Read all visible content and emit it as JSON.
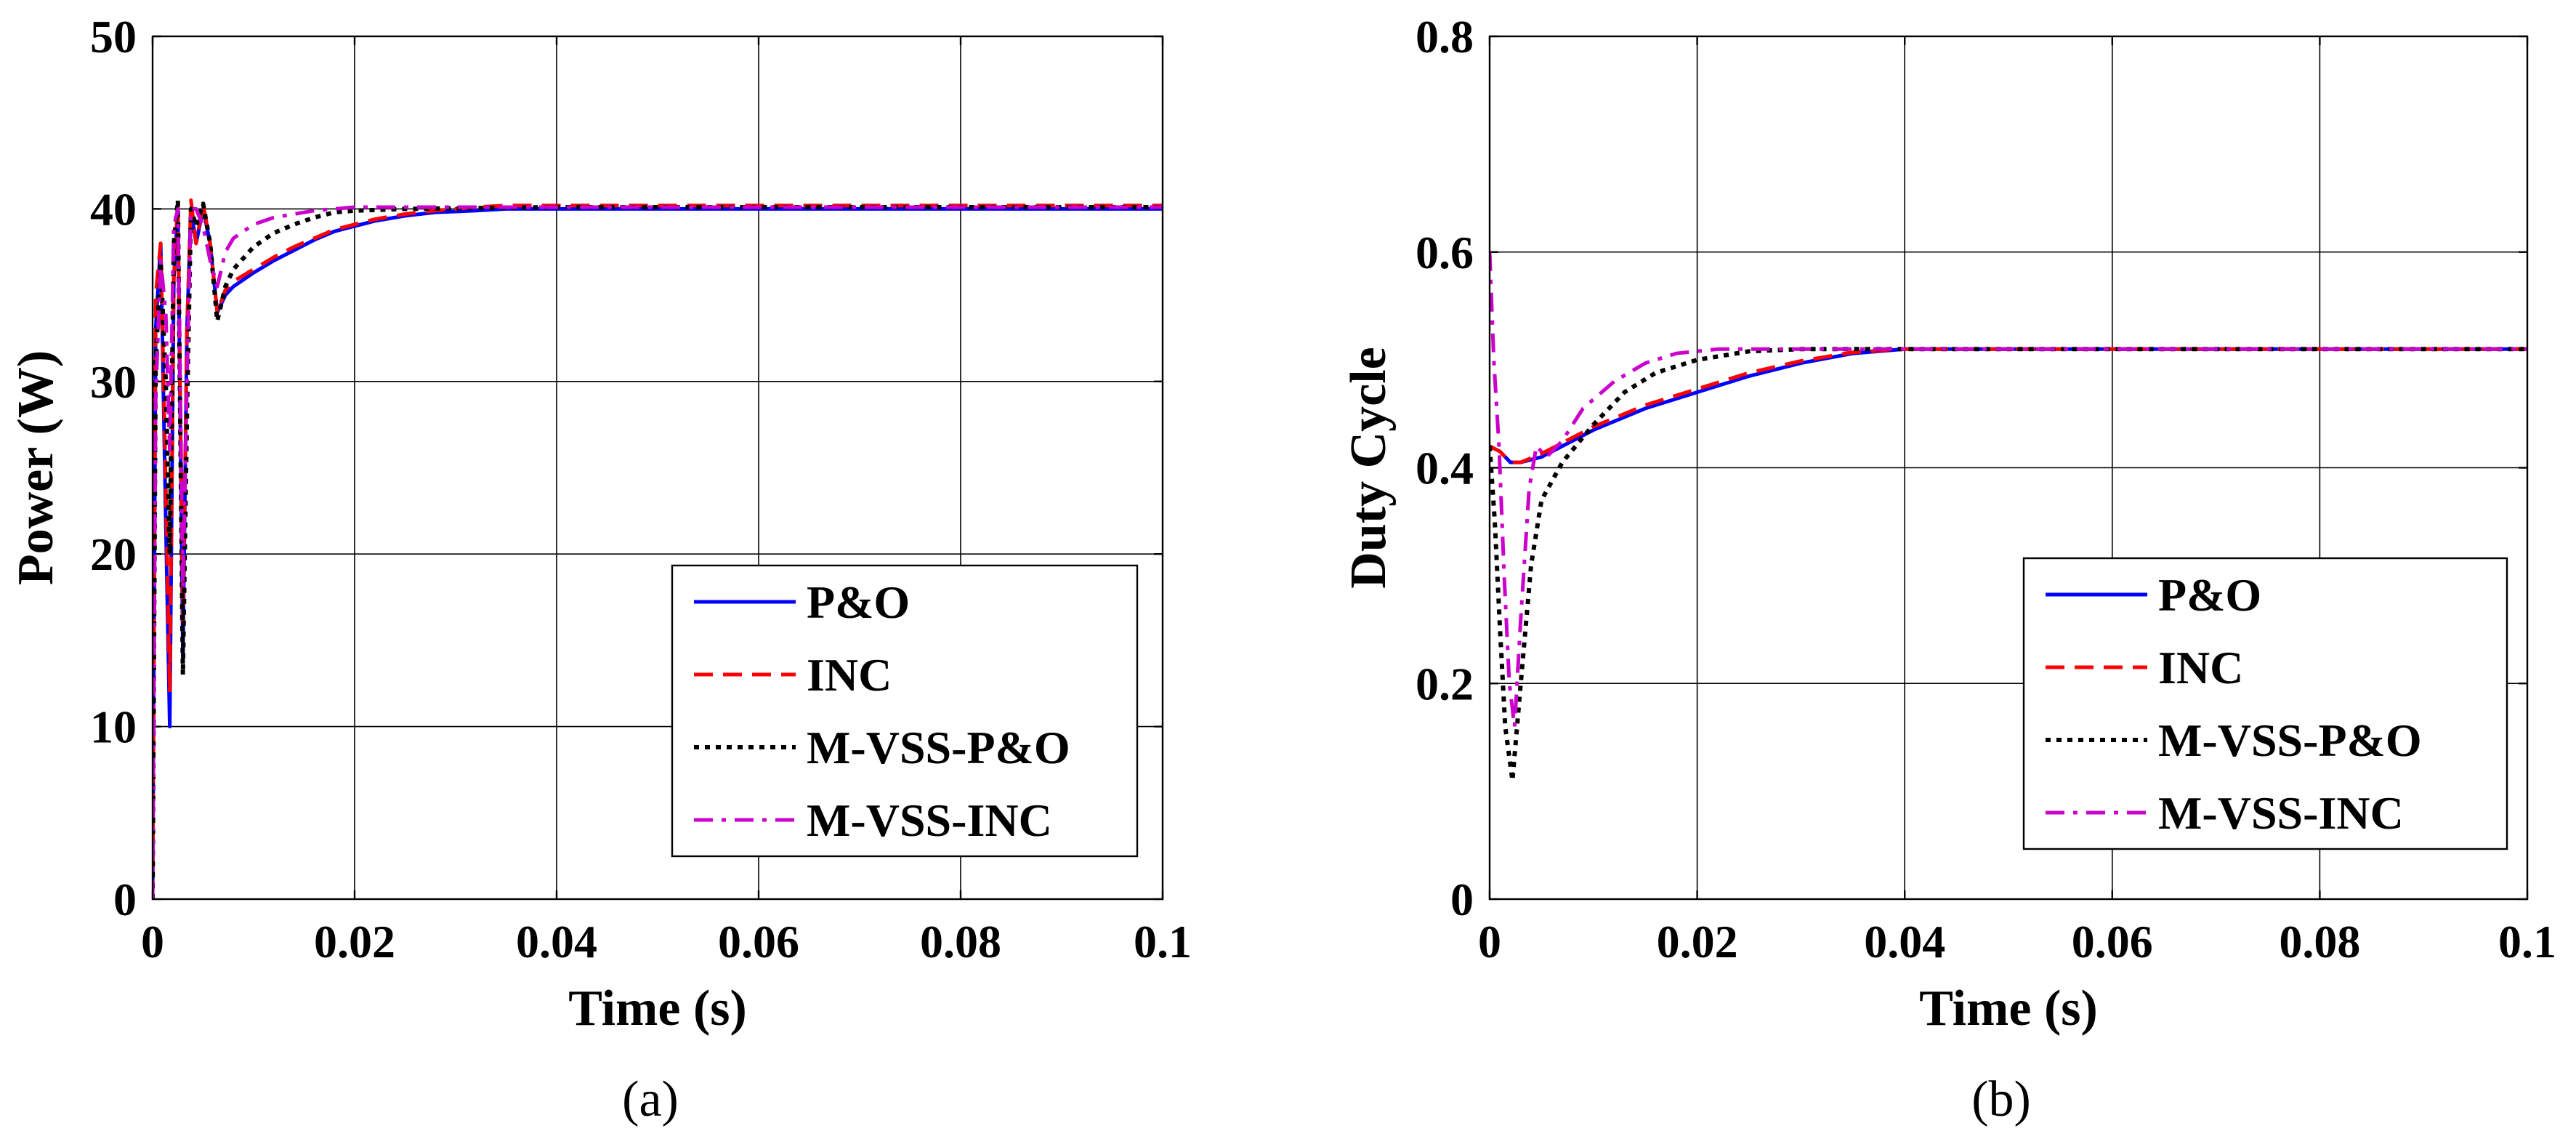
{
  "chart_data": [
    {
      "id": "a",
      "type": "line",
      "caption": "(a)",
      "xlabel": "Time (s)",
      "ylabel": "Power (W)",
      "xlim": [
        0,
        0.1
      ],
      "ylim": [
        0,
        50
      ],
      "xticks": [
        0,
        0.02,
        0.04,
        0.06,
        0.08,
        0.1
      ],
      "xtick_labels": [
        "0",
        "0.02",
        "0.04",
        "0.06",
        "0.08",
        "0.1"
      ],
      "yticks": [
        0,
        10,
        20,
        30,
        40,
        50
      ],
      "ytick_labels": [
        "0",
        "10",
        "20",
        "30",
        "40",
        "50"
      ],
      "grid": true,
      "legend_position": "bottom-right",
      "series": [
        {
          "name": "P&O",
          "color": "#0000ff",
          "style": "solid",
          "points": [
            [
              0,
              0
            ],
            [
              0.0003,
              33
            ],
            [
              0.0008,
              38
            ],
            [
              0.0013,
              22
            ],
            [
              0.0017,
              10
            ],
            [
              0.0021,
              36
            ],
            [
              0.0025,
              40
            ],
            [
              0.003,
              14
            ],
            [
              0.0034,
              33
            ],
            [
              0.0038,
              40
            ],
            [
              0.0043,
              38
            ],
            [
              0.005,
              40
            ],
            [
              0.0057,
              38
            ],
            [
              0.0064,
              34
            ],
            [
              0.0072,
              35
            ],
            [
              0.008,
              35.5
            ],
            [
              0.01,
              36.3
            ],
            [
              0.012,
              37
            ],
            [
              0.014,
              37.6
            ],
            [
              0.016,
              38.2
            ],
            [
              0.018,
              38.7
            ],
            [
              0.02,
              39
            ],
            [
              0.022,
              39.3
            ],
            [
              0.025,
              39.6
            ],
            [
              0.028,
              39.8
            ],
            [
              0.032,
              39.9
            ],
            [
              0.035,
              40
            ],
            [
              0.04,
              40
            ],
            [
              0.06,
              40
            ],
            [
              0.08,
              40
            ],
            [
              0.1,
              40
            ]
          ]
        },
        {
          "name": "INC",
          "color": "#ff0000",
          "style": "dashed",
          "points": [
            [
              0,
              0
            ],
            [
              0.0003,
              35
            ],
            [
              0.0008,
              38
            ],
            [
              0.0013,
              24
            ],
            [
              0.0017,
              12
            ],
            [
              0.0021,
              36
            ],
            [
              0.0025,
              40.5
            ],
            [
              0.003,
              16
            ],
            [
              0.0034,
              33
            ],
            [
              0.0038,
              40.5
            ],
            [
              0.0043,
              38
            ],
            [
              0.005,
              40.3
            ],
            [
              0.0057,
              38
            ],
            [
              0.0064,
              34
            ],
            [
              0.0072,
              35.3
            ],
            [
              0.008,
              35.8
            ],
            [
              0.01,
              36.5
            ],
            [
              0.012,
              37.2
            ],
            [
              0.014,
              37.8
            ],
            [
              0.016,
              38.3
            ],
            [
              0.018,
              38.8
            ],
            [
              0.02,
              39.1
            ],
            [
              0.022,
              39.4
            ],
            [
              0.025,
              39.7
            ],
            [
              0.028,
              39.9
            ],
            [
              0.032,
              40.1
            ],
            [
              0.035,
              40.2
            ],
            [
              0.04,
              40.2
            ],
            [
              0.06,
              40.2
            ],
            [
              0.08,
              40.2
            ],
            [
              0.1,
              40.2
            ]
          ]
        },
        {
          "name": "M-VSS-P&O",
          "color": "#000000",
          "style": "dotted",
          "points": [
            [
              0,
              0
            ],
            [
              0.0003,
              31
            ],
            [
              0.0008,
              37
            ],
            [
              0.0013,
              30
            ],
            [
              0.0017,
              20
            ],
            [
              0.0021,
              38
            ],
            [
              0.0025,
              40.5
            ],
            [
              0.003,
              13
            ],
            [
              0.0034,
              28
            ],
            [
              0.0038,
              40
            ],
            [
              0.0043,
              39
            ],
            [
              0.005,
              40.3
            ],
            [
              0.0057,
              38
            ],
            [
              0.0064,
              33.5
            ],
            [
              0.0072,
              35.5
            ],
            [
              0.008,
              36.5
            ],
            [
              0.01,
              37.8
            ],
            [
              0.012,
              38.6
            ],
            [
              0.014,
              39.1
            ],
            [
              0.016,
              39.5
            ],
            [
              0.018,
              39.8
            ],
            [
              0.02,
              39.9
            ],
            [
              0.025,
              40
            ],
            [
              0.04,
              40.1
            ],
            [
              0.06,
              40.1
            ],
            [
              0.08,
              40.1
            ],
            [
              0.1,
              40.1
            ]
          ]
        },
        {
          "name": "M-VSS-INC",
          "color": "#cc00cc",
          "style": "dashdot",
          "points": [
            [
              0,
              0
            ],
            [
              0.0003,
              29
            ],
            [
              0.0008,
              37
            ],
            [
              0.0013,
              34
            ],
            [
              0.0017,
              26
            ],
            [
              0.0021,
              39
            ],
            [
              0.0025,
              40
            ],
            [
              0.003,
              18
            ],
            [
              0.0034,
              30
            ],
            [
              0.0038,
              40
            ],
            [
              0.0043,
              40
            ],
            [
              0.005,
              39
            ],
            [
              0.0057,
              37
            ],
            [
              0.0064,
              35.5
            ],
            [
              0.0072,
              37.5
            ],
            [
              0.008,
              38.3
            ],
            [
              0.01,
              39.1
            ],
            [
              0.012,
              39.5
            ],
            [
              0.014,
              39.7
            ],
            [
              0.016,
              39.9
            ],
            [
              0.018,
              40
            ],
            [
              0.02,
              40.1
            ],
            [
              0.04,
              40.1
            ],
            [
              0.06,
              40.1
            ],
            [
              0.08,
              40.1
            ],
            [
              0.1,
              40.1
            ]
          ]
        }
      ]
    },
    {
      "id": "b",
      "type": "line",
      "caption": "(b)",
      "xlabel": "Time (s)",
      "ylabel": "Duty Cycle",
      "xlim": [
        0,
        0.1
      ],
      "ylim": [
        0,
        0.8
      ],
      "xticks": [
        0,
        0.02,
        0.04,
        0.06,
        0.08,
        0.1
      ],
      "xtick_labels": [
        "0",
        "0.02",
        "0.04",
        "0.06",
        "0.08",
        "0.1"
      ],
      "yticks": [
        0,
        0.2,
        0.4,
        0.6,
        0.8
      ],
      "ytick_labels": [
        "0",
        "0.2",
        "0.4",
        "0.6",
        "0.8"
      ],
      "grid": true,
      "legend_position": "bottom-right",
      "series": [
        {
          "name": "P&O",
          "color": "#0000ff",
          "style": "solid",
          "points": [
            [
              0,
              0.42
            ],
            [
              0.001,
              0.415
            ],
            [
              0.002,
              0.405
            ],
            [
              0.003,
              0.405
            ],
            [
              0.005,
              0.41
            ],
            [
              0.008,
              0.425
            ],
            [
              0.01,
              0.435
            ],
            [
              0.015,
              0.455
            ],
            [
              0.02,
              0.47
            ],
            [
              0.025,
              0.485
            ],
            [
              0.03,
              0.497
            ],
            [
              0.035,
              0.506
            ],
            [
              0.04,
              0.51
            ],
            [
              0.06,
              0.51
            ],
            [
              0.08,
              0.51
            ],
            [
              0.1,
              0.51
            ]
          ]
        },
        {
          "name": "INC",
          "color": "#ff0000",
          "style": "dashed",
          "points": [
            [
              0,
              0.42
            ],
            [
              0.001,
              0.415
            ],
            [
              0.002,
              0.405
            ],
            [
              0.003,
              0.405
            ],
            [
              0.005,
              0.413
            ],
            [
              0.008,
              0.428
            ],
            [
              0.01,
              0.438
            ],
            [
              0.015,
              0.458
            ],
            [
              0.02,
              0.473
            ],
            [
              0.025,
              0.488
            ],
            [
              0.03,
              0.499
            ],
            [
              0.035,
              0.507
            ],
            [
              0.04,
              0.51
            ],
            [
              0.06,
              0.51
            ],
            [
              0.08,
              0.51
            ],
            [
              0.1,
              0.51
            ]
          ]
        },
        {
          "name": "M-VSS-P&O",
          "color": "#000000",
          "style": "dotted",
          "points": [
            [
              0,
              0.42
            ],
            [
              0.0005,
              0.35
            ],
            [
              0.001,
              0.25
            ],
            [
              0.0015,
              0.16
            ],
            [
              0.0022,
              0.11
            ],
            [
              0.003,
              0.2
            ],
            [
              0.004,
              0.31
            ],
            [
              0.005,
              0.37
            ],
            [
              0.007,
              0.405
            ],
            [
              0.01,
              0.44
            ],
            [
              0.013,
              0.47
            ],
            [
              0.016,
              0.488
            ],
            [
              0.02,
              0.5
            ],
            [
              0.025,
              0.508
            ],
            [
              0.03,
              0.51
            ],
            [
              0.06,
              0.51
            ],
            [
              0.08,
              0.51
            ],
            [
              0.1,
              0.51
            ]
          ]
        },
        {
          "name": "M-VSS-INC",
          "color": "#cc00cc",
          "style": "dashdot",
          "points": [
            [
              0,
              0.6
            ],
            [
              0.0004,
              0.5
            ],
            [
              0.0009,
              0.42
            ],
            [
              0.0014,
              0.3
            ],
            [
              0.0019,
              0.2
            ],
            [
              0.0024,
              0.16
            ],
            [
              0.003,
              0.26
            ],
            [
              0.0038,
              0.38
            ],
            [
              0.0045,
              0.42
            ],
            [
              0.0055,
              0.41
            ],
            [
              0.007,
              0.425
            ],
            [
              0.009,
              0.455
            ],
            [
              0.012,
              0.48
            ],
            [
              0.015,
              0.497
            ],
            [
              0.018,
              0.506
            ],
            [
              0.022,
              0.51
            ],
            [
              0.03,
              0.51
            ],
            [
              0.06,
              0.51
            ],
            [
              0.08,
              0.51
            ],
            [
              0.1,
              0.51
            ]
          ]
        }
      ]
    }
  ]
}
